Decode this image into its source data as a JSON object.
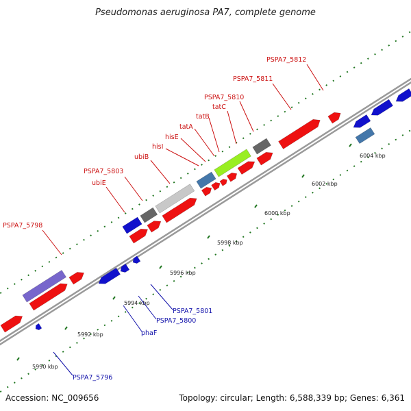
{
  "title": "Pseudomonas aeruginosa PA7, complete genome",
  "accession": "Accession: NC_009656",
  "summary": "Topology: circular; Length: 6,588,339 bp; Genes: 6,361",
  "colors": {
    "forward": "#ee1111",
    "reverse": "#1111cc",
    "gray": "#666666",
    "lightgray": "#c8c8c8",
    "lime": "#99ee22",
    "steel": "#4477aa",
    "violet": "#7766cc",
    "forward_label": "#cc1111",
    "reverse_label": "#1111aa",
    "dots": "#227722",
    "backbone": "#888888"
  },
  "ticks": [
    "5990 kbp",
    "5992 kbp",
    "5994 kbp",
    "5996 kbp",
    "5998 kbp",
    "6000 kbp",
    "6002 kbp",
    "6004 kbp"
  ],
  "labels_forward": [
    "PSPA7_5798",
    "ubiE",
    "PSPA7_5803",
    "ubiB",
    "hisI",
    "hisE",
    "tatA",
    "tatB",
    "tatC",
    "PSPA7_5810",
    "PSPA7_5811",
    "PSPA7_5812"
  ],
  "labels_reverse": [
    "PSPA7_5801",
    "PSPA7_5800",
    "phaF",
    "PSPA7_5796"
  ]
}
